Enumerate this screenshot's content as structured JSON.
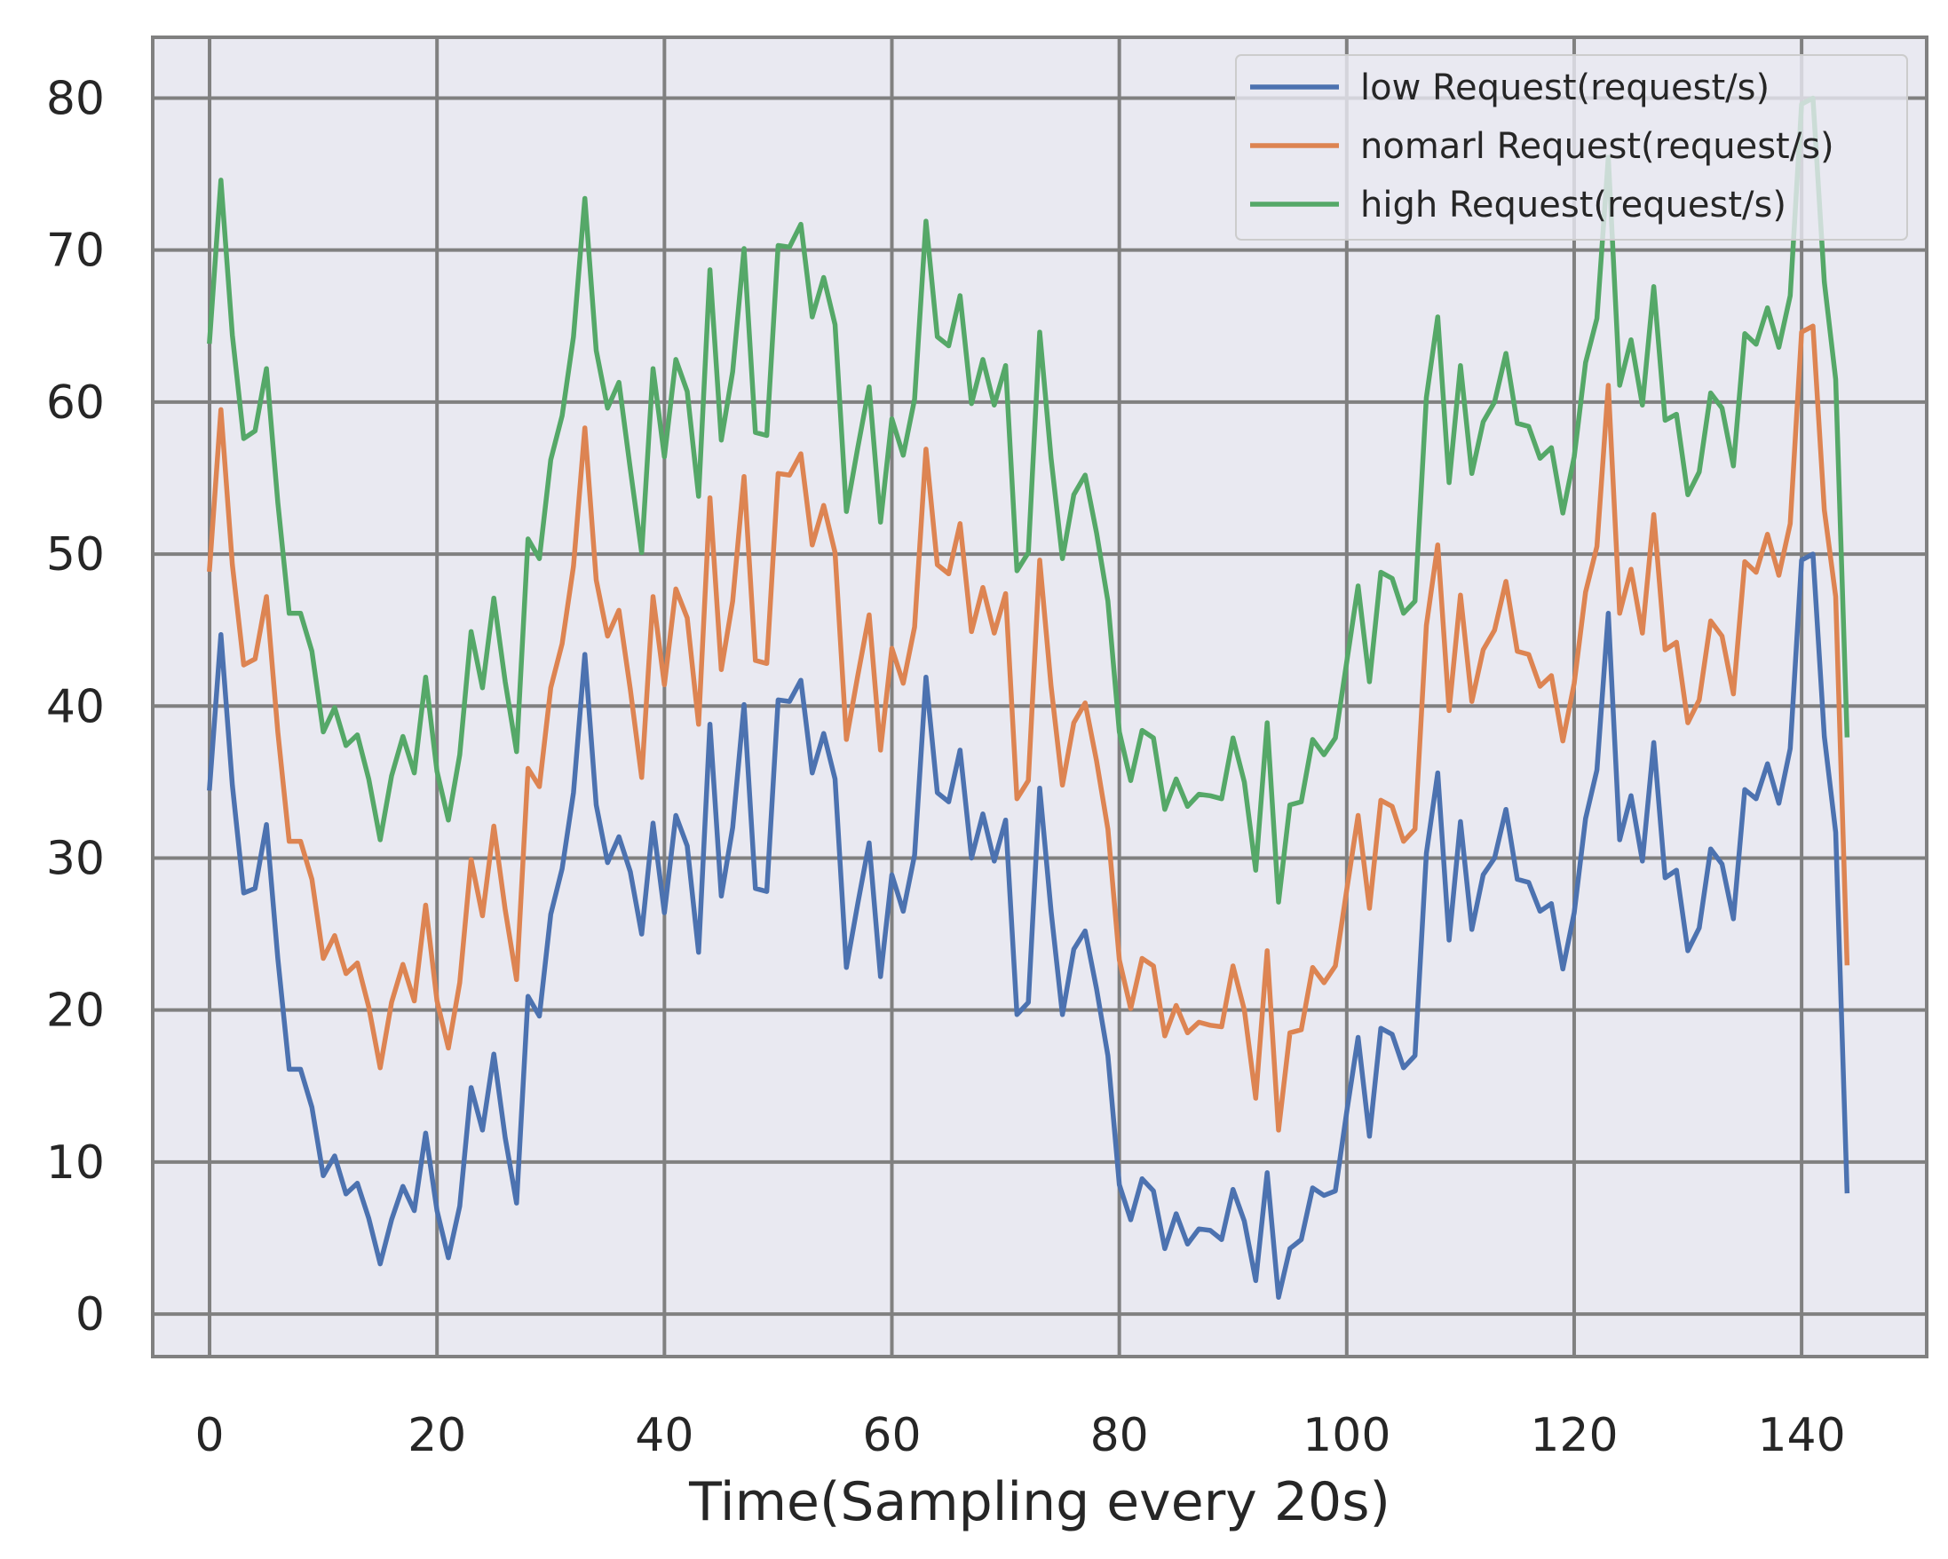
{
  "chart_data": {
    "type": "line",
    "title": "",
    "xlabel": "Time(Sampling every 20s)",
    "ylabel": "",
    "xlim": [
      -5,
      151
    ],
    "ylim": [
      -2.8,
      84
    ],
    "xticks": [
      0,
      20,
      40,
      60,
      80,
      100,
      120,
      140
    ],
    "yticks": [
      0,
      10,
      20,
      30,
      40,
      50,
      60,
      70,
      80
    ],
    "grid": true,
    "legend_position": "top-right",
    "colors": {
      "background": "#e9e9f1",
      "grid": "#808080",
      "spine": "#808080",
      "low": "#4c72b0",
      "normal": "#dd8452",
      "high": "#55a868"
    },
    "series": [
      {
        "name": "low Request(request/s)",
        "color_key": "low",
        "values": [
          34.6,
          44.7,
          34.8,
          27.7,
          28.0,
          32.2,
          23.4,
          16.1,
          16.1,
          13.6,
          9.1,
          10.4,
          7.9,
          8.6,
          6.3,
          3.3,
          6.2,
          8.4,
          6.8,
          11.9,
          6.8,
          3.7,
          7.1,
          14.9,
          12.1,
          17.1,
          11.6,
          7.3,
          20.9,
          19.6,
          26.3,
          29.3,
          34.3,
          43.4,
          33.5,
          29.7,
          31.4,
          29.1,
          25.0,
          32.3,
          26.4,
          32.8,
          30.8,
          23.8,
          38.8,
          27.5,
          32.0,
          40.1,
          28.0,
          27.8,
          40.4,
          40.3,
          41.7,
          35.6,
          38.2,
          35.2,
          22.8,
          27.0,
          31.0,
          22.2,
          28.9,
          26.5,
          30.2,
          41.9,
          34.3,
          33.7,
          37.1,
          30.0,
          32.9,
          29.8,
          32.5,
          19.7,
          20.5,
          34.6,
          26.5,
          19.7,
          24.0,
          25.2,
          21.4,
          17.0,
          8.5,
          6.2,
          8.9,
          8.1,
          4.3,
          6.6,
          4.6,
          5.6,
          5.5,
          4.9,
          8.2,
          6.1,
          2.2,
          9.3,
          1.1,
          4.3,
          4.9,
          8.3,
          7.8,
          8.1,
          13.3,
          18.2,
          11.7,
          18.8,
          18.4,
          16.2,
          17.0,
          30.3,
          35.6,
          24.6,
          32.4,
          25.3,
          28.9,
          30.0,
          33.2,
          28.6,
          28.4,
          26.5,
          27.0,
          22.7,
          26.4,
          32.6,
          35.8,
          46.1,
          31.2,
          34.1,
          29.8,
          37.6,
          28.7,
          29.2,
          23.9,
          25.4,
          30.6,
          29.6,
          26.0,
          34.5,
          33.9,
          36.2,
          33.6,
          37.2,
          49.6,
          50.0,
          38.0,
          31.7,
          8.1
        ]
      },
      {
        "name": "nomarl Request(request/s)",
        "color_key": "normal",
        "values": [
          49.0,
          59.5,
          49.3,
          42.7,
          43.1,
          47.2,
          38.3,
          31.1,
          31.1,
          28.6,
          23.4,
          24.9,
          22.4,
          23.1,
          20.2,
          16.2,
          20.5,
          23.0,
          20.6,
          26.9,
          20.6,
          17.5,
          21.8,
          29.9,
          26.2,
          32.1,
          26.6,
          22.0,
          35.9,
          34.7,
          41.2,
          44.1,
          49.2,
          58.3,
          48.3,
          44.6,
          46.3,
          41.1,
          35.3,
          47.2,
          41.4,
          47.7,
          45.8,
          38.8,
          53.7,
          42.4,
          46.9,
          55.1,
          43.0,
          42.8,
          55.3,
          55.2,
          56.6,
          50.6,
          53.2,
          50.1,
          37.8,
          42.0,
          46.0,
          37.1,
          43.8,
          41.5,
          45.2,
          56.9,
          49.3,
          48.7,
          52.0,
          44.9,
          47.8,
          44.8,
          47.4,
          33.9,
          35.1,
          49.6,
          41.3,
          34.8,
          38.9,
          40.2,
          36.4,
          31.9,
          23.3,
          20.1,
          23.4,
          22.9,
          18.3,
          20.3,
          18.5,
          19.2,
          19.0,
          18.9,
          22.9,
          20.0,
          14.2,
          23.9,
          12.1,
          18.5,
          18.7,
          22.8,
          21.8,
          22.9,
          27.9,
          32.8,
          26.7,
          33.8,
          33.4,
          31.1,
          31.9,
          45.3,
          50.6,
          39.7,
          47.3,
          40.3,
          43.7,
          45.0,
          48.2,
          43.6,
          43.4,
          41.3,
          42.0,
          37.7,
          41.5,
          47.5,
          50.5,
          61.1,
          46.1,
          49.0,
          44.8,
          52.6,
          43.7,
          44.2,
          38.9,
          40.4,
          45.6,
          44.6,
          40.8,
          49.5,
          48.8,
          51.3,
          48.6,
          52.0,
          64.6,
          65.0,
          52.9,
          47.2,
          23.1
        ]
      },
      {
        "name": "high Request(request/s)",
        "color_key": "high",
        "values": [
          64.0,
          74.6,
          64.4,
          57.6,
          58.1,
          62.2,
          53.4,
          46.1,
          46.1,
          43.6,
          38.3,
          39.9,
          37.4,
          38.1,
          35.2,
          31.2,
          35.4,
          38.0,
          35.6,
          41.9,
          35.7,
          32.5,
          36.8,
          44.9,
          41.2,
          47.1,
          41.6,
          37.0,
          51.0,
          49.7,
          56.2,
          59.1,
          64.3,
          73.4,
          63.4,
          59.6,
          61.3,
          55.6,
          50.1,
          62.2,
          56.4,
          62.8,
          60.7,
          53.8,
          68.7,
          57.5,
          62.0,
          70.1,
          58.0,
          57.8,
          70.3,
          70.2,
          71.7,
          65.6,
          68.2,
          65.1,
          52.8,
          57.0,
          61.0,
          52.1,
          58.9,
          56.5,
          60.2,
          71.9,
          64.3,
          63.7,
          67.0,
          59.9,
          62.8,
          59.8,
          62.4,
          48.9,
          50.1,
          64.6,
          56.3,
          49.7,
          53.9,
          55.2,
          51.4,
          46.9,
          38.3,
          35.1,
          38.4,
          37.9,
          33.2,
          35.2,
          33.4,
          34.2,
          34.1,
          33.9,
          37.9,
          35.0,
          29.2,
          38.9,
          27.1,
          33.5,
          33.7,
          37.8,
          36.8,
          37.9,
          42.9,
          47.9,
          41.6,
          48.8,
          48.4,
          46.1,
          46.9,
          60.3,
          65.6,
          54.7,
          62.4,
          55.3,
          58.7,
          60.0,
          63.2,
          58.6,
          58.4,
          56.3,
          57.0,
          52.7,
          56.4,
          62.6,
          65.5,
          76.1,
          61.1,
          64.1,
          59.8,
          67.6,
          58.8,
          59.2,
          53.9,
          55.4,
          60.6,
          59.6,
          55.8,
          64.5,
          63.8,
          66.2,
          63.6,
          67.0,
          79.6,
          80.0,
          67.9,
          61.5,
          38.1
        ]
      }
    ]
  }
}
